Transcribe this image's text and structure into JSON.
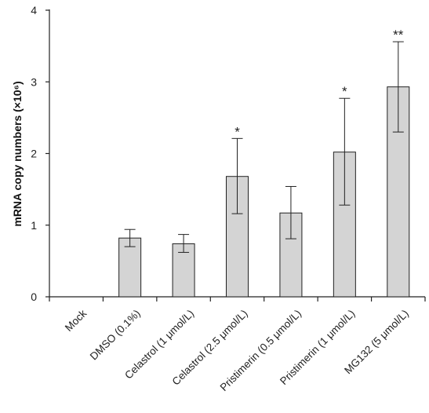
{
  "chart_data": {
    "type": "bar",
    "title": "",
    "xlabel": "",
    "ylabel": "mRNA copy numbers (×10⁶)",
    "ylim": [
      0,
      4
    ],
    "yticks": [
      0,
      1,
      2,
      3,
      4
    ],
    "grid": false,
    "categories": [
      "Mock",
      "DMSO (0.1%)",
      "Celastrol (1 μmol/L)",
      "Celastrol (2.5 μmol/L)",
      "Pristimerin (0.5 μmol/L)",
      "Pristimerin (1 μmol/L)",
      "MG132 (5 μmol/L)"
    ],
    "values": [
      0,
      0.82,
      0.74,
      1.68,
      1.17,
      2.02,
      2.93
    ],
    "error_plus": [
      0,
      0.12,
      0.13,
      0.53,
      0.37,
      0.75,
      0.63
    ],
    "error_minus": [
      0,
      0.12,
      0.12,
      0.52,
      0.36,
      0.74,
      0.63
    ],
    "annotations": [
      "",
      "",
      "",
      "*",
      "",
      "*",
      "**"
    ],
    "bar_color": "#d4d4d4",
    "bar_edge_color": "#222222"
  }
}
